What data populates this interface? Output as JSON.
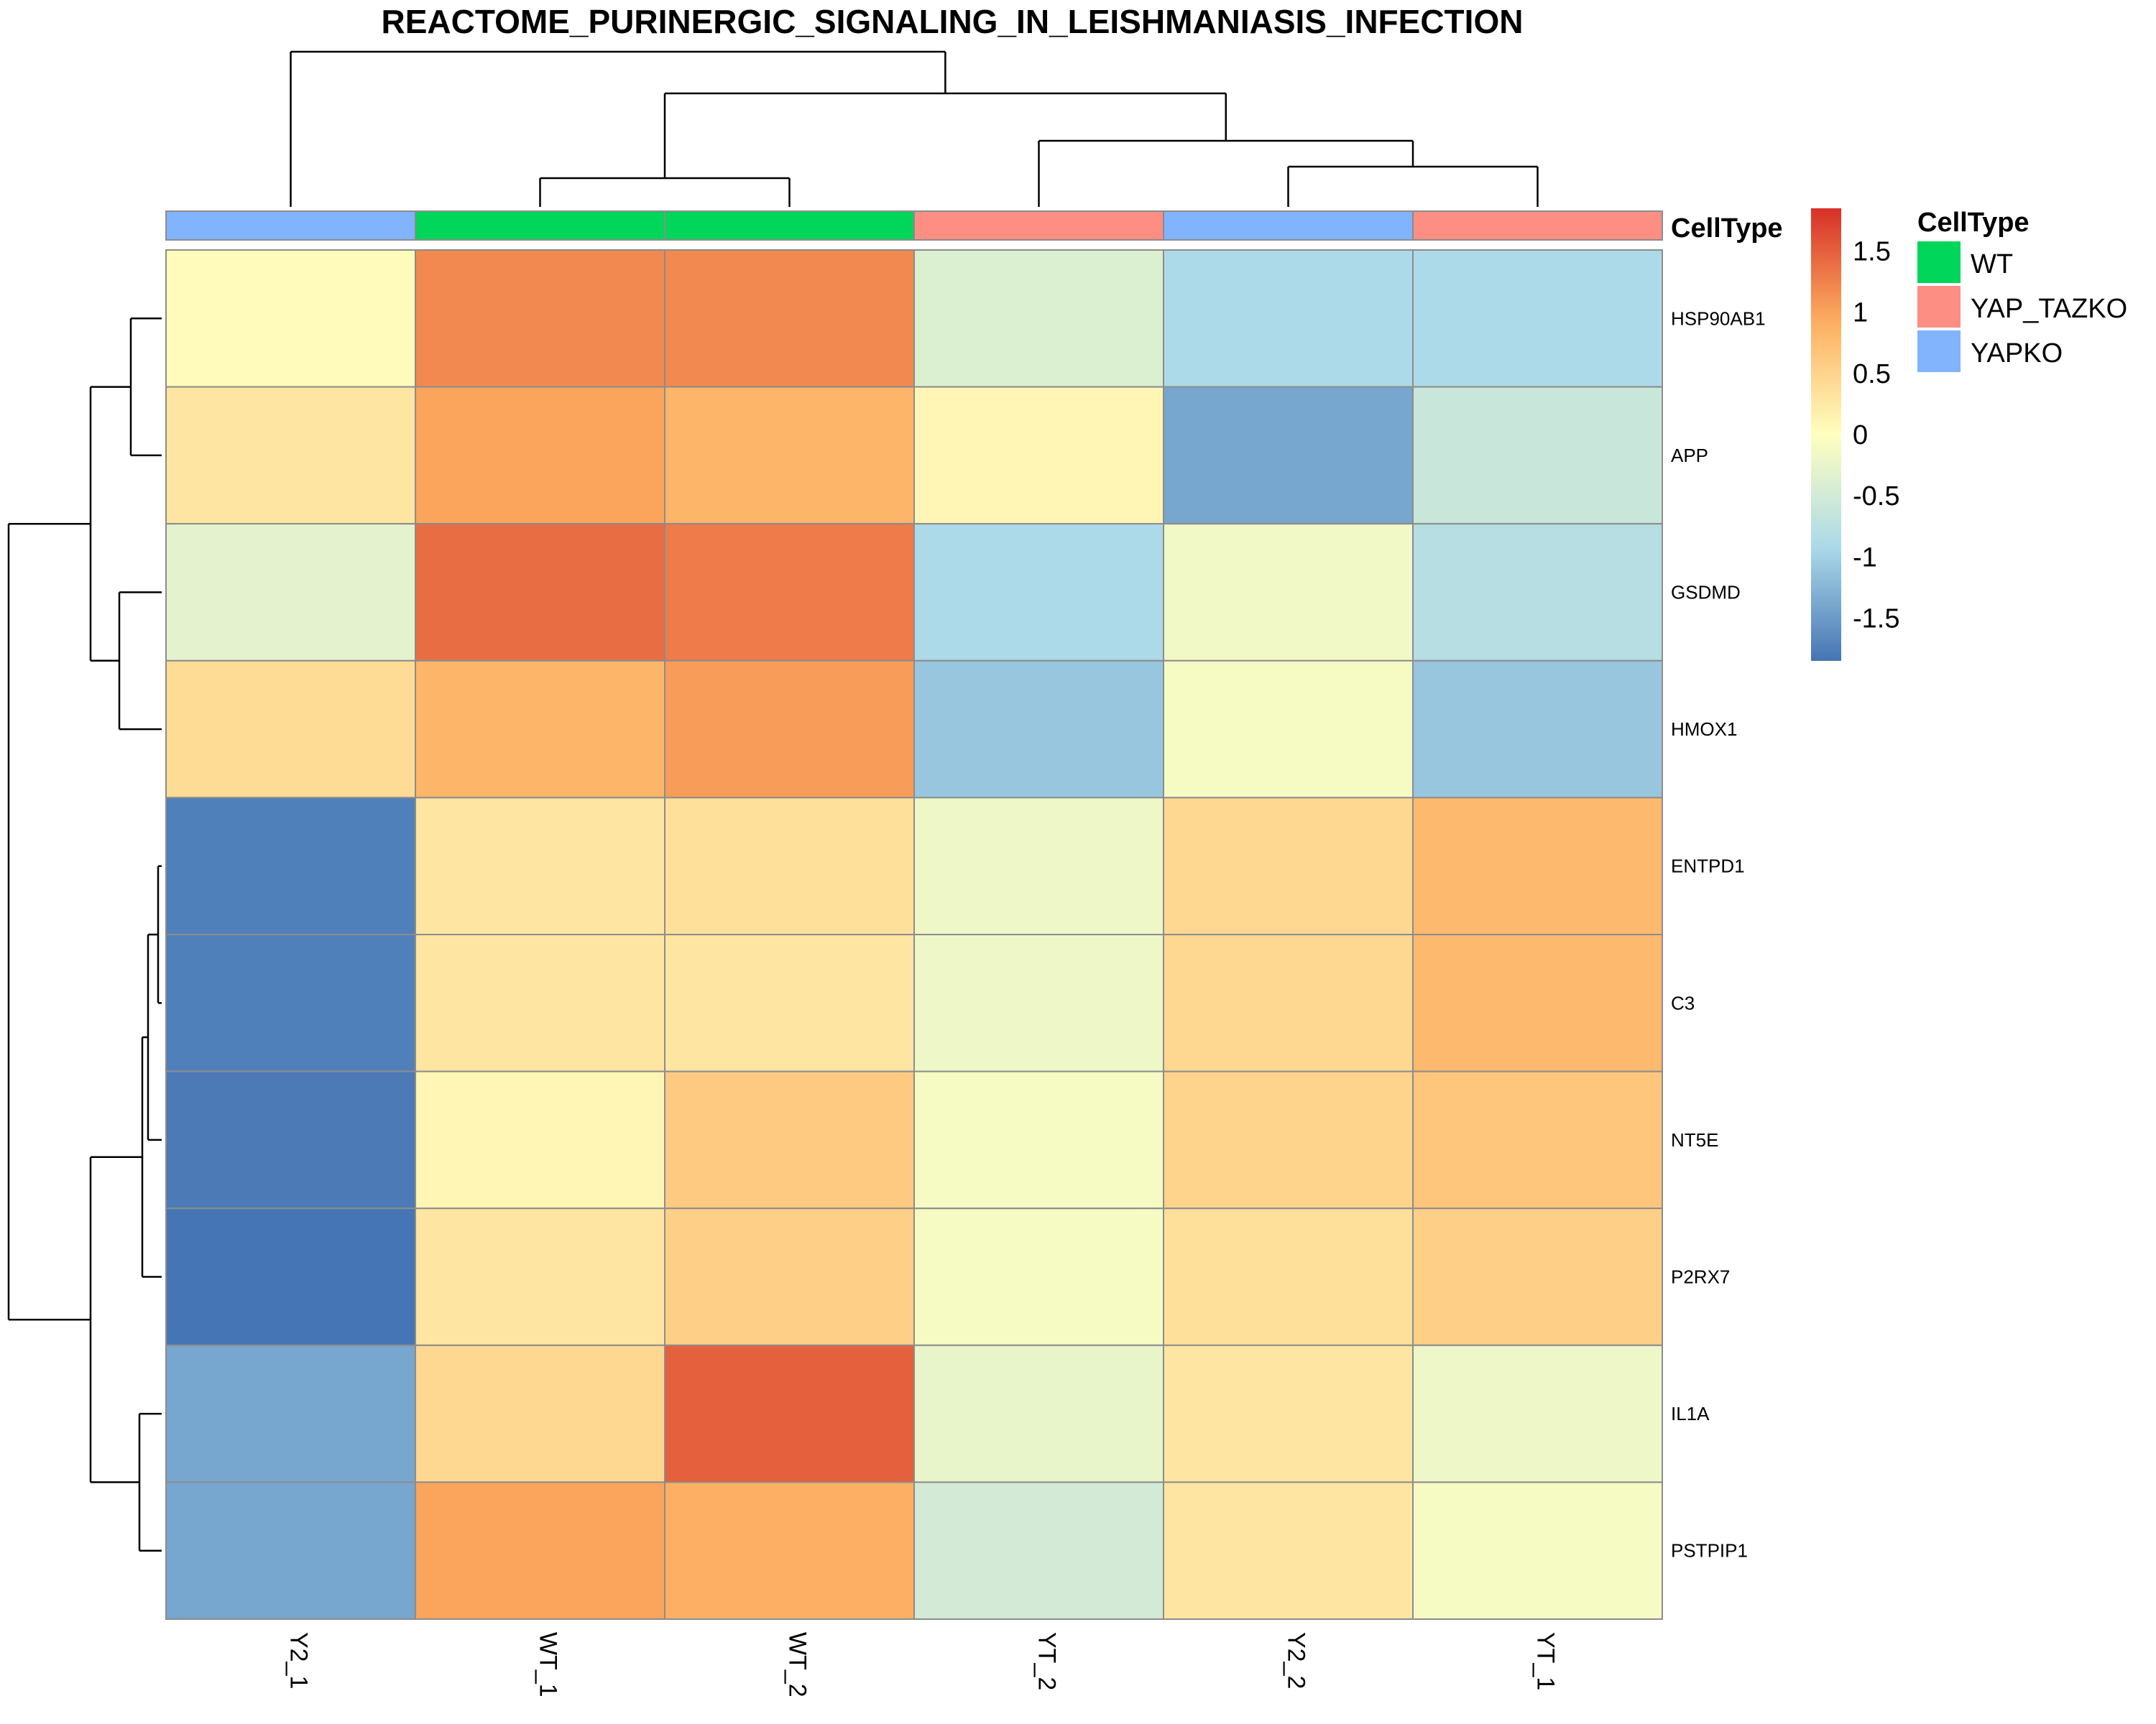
{
  "chart_data": {
    "type": "heatmap",
    "title": "REACTOME_PURINERGIC_SIGNALING_IN_LEISHMANIASIS_INFECTION",
    "rows": [
      "HSP90AB1",
      "APP",
      "GSDMD",
      "HMOX1",
      "ENTPD1",
      "C3",
      "NT5E",
      "P2RX7",
      "IL1A",
      "PSTPIP1"
    ],
    "columns": [
      "Y2_1",
      "WT_1",
      "WT_2",
      "YT_2",
      "Y2_2",
      "YT_1"
    ],
    "values": [
      [
        0.05,
        1.2,
        1.2,
        -0.4,
        -0.9,
        -0.9
      ],
      [
        0.3,
        1.0,
        0.85,
        0.1,
        -1.4,
        -0.6
      ],
      [
        -0.3,
        1.4,
        1.3,
        -0.9,
        -0.15,
        -0.8
      ],
      [
        0.4,
        0.85,
        1.05,
        -1.1,
        -0.1,
        -1.1
      ],
      [
        -1.75,
        0.3,
        0.35,
        -0.2,
        0.45,
        0.8
      ],
      [
        -1.75,
        0.3,
        0.3,
        -0.2,
        0.45,
        0.8
      ],
      [
        -1.8,
        0.1,
        0.6,
        -0.1,
        0.5,
        0.65
      ],
      [
        -1.85,
        0.3,
        0.55,
        -0.1,
        0.35,
        0.55
      ],
      [
        -1.4,
        0.45,
        1.5,
        -0.25,
        0.3,
        -0.2
      ],
      [
        -1.4,
        1.0,
        0.9,
        -0.5,
        0.3,
        -0.1
      ]
    ],
    "color_scale": {
      "min": -1.85,
      "max": 1.85,
      "low_color": "#4575b4",
      "mid_color": "#ffffbf",
      "high_color": "#d73027",
      "ticks": [
        1.5,
        1,
        0.5,
        0,
        -0.5,
        -1,
        -1.5
      ],
      "tick_labels": [
        "1.5",
        "1",
        "0.5",
        "0",
        "-0.5",
        "-1",
        "-1.5"
      ]
    },
    "column_annotation": {
      "name": "CellType",
      "values": [
        "YAPKO",
        "WT",
        "WT",
        "YAP_TAZKO",
        "YAPKO",
        "YAP_TAZKO"
      ]
    },
    "legend": {
      "title": "CellType",
      "placement": "right",
      "entries": [
        {
          "label": "WT",
          "color": "#00d65a"
        },
        {
          "label": "YAP_TAZKO",
          "color": "#fd8e83"
        },
        {
          "label": "YAPKO",
          "color": "#81b4fd"
        }
      ]
    },
    "column_dendrogram": true,
    "row_dendrogram": true
  }
}
